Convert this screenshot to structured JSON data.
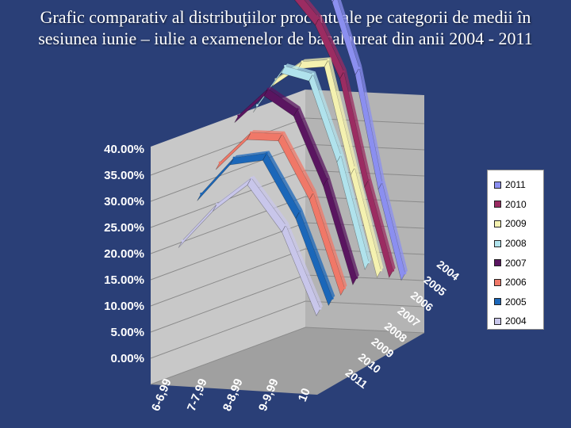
{
  "title": "Grafic comparativ al distribuţiilor procentuale pe categorii de medii în sesiunea iunie – iulie a examenelor de bacalaureat din anii 2004 - 2011",
  "colors": {
    "background": "#2a3f77",
    "walls": "#c8c8c8",
    "floor": "#a0a0a0"
  },
  "chart_data": {
    "type": "line",
    "subtype": "3d-ribbon",
    "title": "",
    "categories": [
      "6-6,99",
      "7-7,99",
      "8-8,99",
      "9-9,99",
      "10"
    ],
    "y_ticks": [
      "0.00%",
      "5.00%",
      "10.00%",
      "15.00%",
      "20.00%",
      "25.00%",
      "30.00%",
      "35.00%",
      "40.00%"
    ],
    "y_unit": "%",
    "ylim": [
      0,
      40
    ],
    "depth_ticks": [
      "2004",
      "2005",
      "2006",
      "2007",
      "2008",
      "2009",
      "2010",
      "2011"
    ],
    "gridlines": true,
    "legend_position": "right",
    "series": [
      {
        "name": "2011",
        "color": "#8b8ff0",
        "values": [
          33.5,
          30.0,
          24.0,
          10.0,
          0.5
        ]
      },
      {
        "name": "2010",
        "color": "#9b2c62",
        "values": [
          30.5,
          31.5,
          28.0,
          14.0,
          3.5
        ]
      },
      {
        "name": "2009",
        "color": "#f4f1b0",
        "values": [
          20.0,
          29.0,
          35.0,
          20.0,
          6.0
        ]
      },
      {
        "name": "2008",
        "color": "#b0e2ec",
        "values": [
          22.0,
          34.0,
          37.0,
          26.0,
          10.0
        ]
      },
      {
        "name": "2007",
        "color": "#5a1560",
        "values": [
          27.0,
          35.5,
          35.0,
          25.0,
          9.5
        ]
      },
      {
        "name": "2006",
        "color": "#f07868",
        "values": [
          25.0,
          33.0,
          35.0,
          26.0,
          10.0
        ]
      },
      {
        "name": "2005",
        "color": "#1b67b9",
        "values": [
          26.0,
          34.0,
          36.0,
          26.0,
          10.5
        ]
      },
      {
        "name": "2004",
        "color": "#c8c6ea",
        "values": [
          24.0,
          31.0,
          36.0,
          27.0,
          11.0
        ]
      }
    ]
  }
}
